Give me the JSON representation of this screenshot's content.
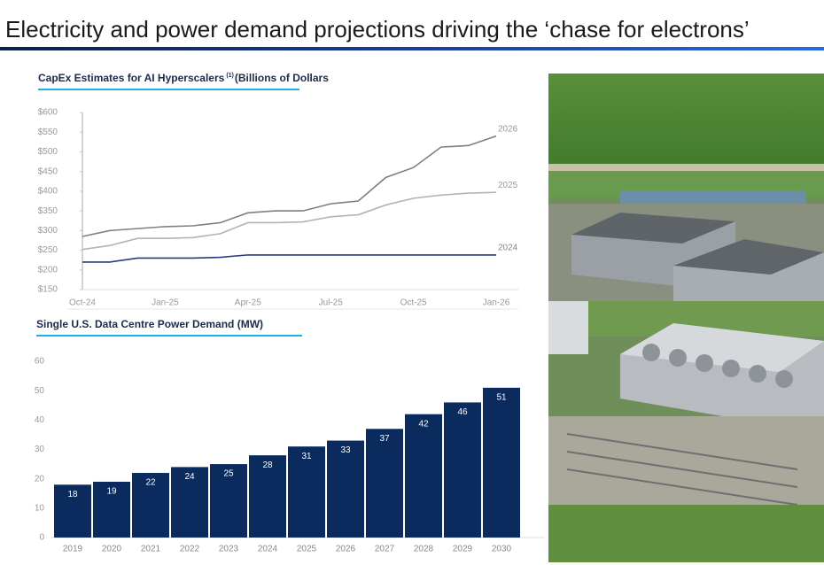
{
  "header": {
    "title": "Electricity and power demand projections driving the ‘chase for electrons’"
  },
  "chart_data": [
    {
      "type": "line",
      "title": "CapEx Estimates for AI Hyperscalers",
      "title_superscript": "(1)",
      "subtitle": "(Billions of Dollars",
      "categories": [
        "Oct-24",
        null,
        null,
        "Jan-25",
        null,
        null,
        "Apr-25",
        null,
        null,
        "Jul-25",
        null,
        null,
        "Oct-25",
        null,
        null,
        "Jan-26"
      ],
      "series": [
        {
          "name": "2026",
          "color": "#7f7f7f",
          "values": [
            285,
            300,
            305,
            310,
            312,
            320,
            345,
            350,
            350,
            368,
            375,
            435,
            460,
            512,
            516,
            540
          ]
        },
        {
          "name": "2025",
          "color": "#b3b3b3",
          "values": [
            252,
            262,
            280,
            280,
            282,
            292,
            320,
            320,
            322,
            335,
            340,
            365,
            382,
            390,
            395,
            397
          ]
        },
        {
          "name": "2024",
          "color": "#2b3a7c",
          "values": [
            220,
            220,
            230,
            230,
            230,
            232,
            238,
            238,
            238,
            238,
            238,
            238,
            238,
            238,
            238,
            238
          ]
        }
      ],
      "ylim": [
        150,
        600
      ],
      "yticks": [
        {
          "value": 150,
          "label": "$150"
        },
        {
          "value": 200,
          "label": "$200"
        },
        {
          "value": 250,
          "label": "$250"
        },
        {
          "value": 300,
          "label": "$300"
        },
        {
          "value": 350,
          "label": "$350"
        },
        {
          "value": 400,
          "label": "$400"
        },
        {
          "value": 450,
          "label": "$450"
        },
        {
          "value": 500,
          "label": "$500"
        },
        {
          "value": 550,
          "label": "$550"
        },
        {
          "value": 600,
          "label": "$600"
        }
      ]
    },
    {
      "type": "bar",
      "title": "Single U.S. Data Centre Power Demand (MW)",
      "categories": [
        "2019",
        "2020",
        "2021",
        "2022",
        "2023",
        "2024",
        "2025",
        "2026",
        "2027",
        "2028",
        "2029",
        "2030"
      ],
      "values": [
        18,
        19,
        22,
        24,
        25,
        28,
        31,
        33,
        37,
        42,
        46,
        51
      ],
      "color": "#0b2b5e",
      "ylim": [
        0,
        60
      ],
      "yticks": [
        0,
        10,
        20,
        30,
        40,
        50,
        60
      ]
    }
  ]
}
